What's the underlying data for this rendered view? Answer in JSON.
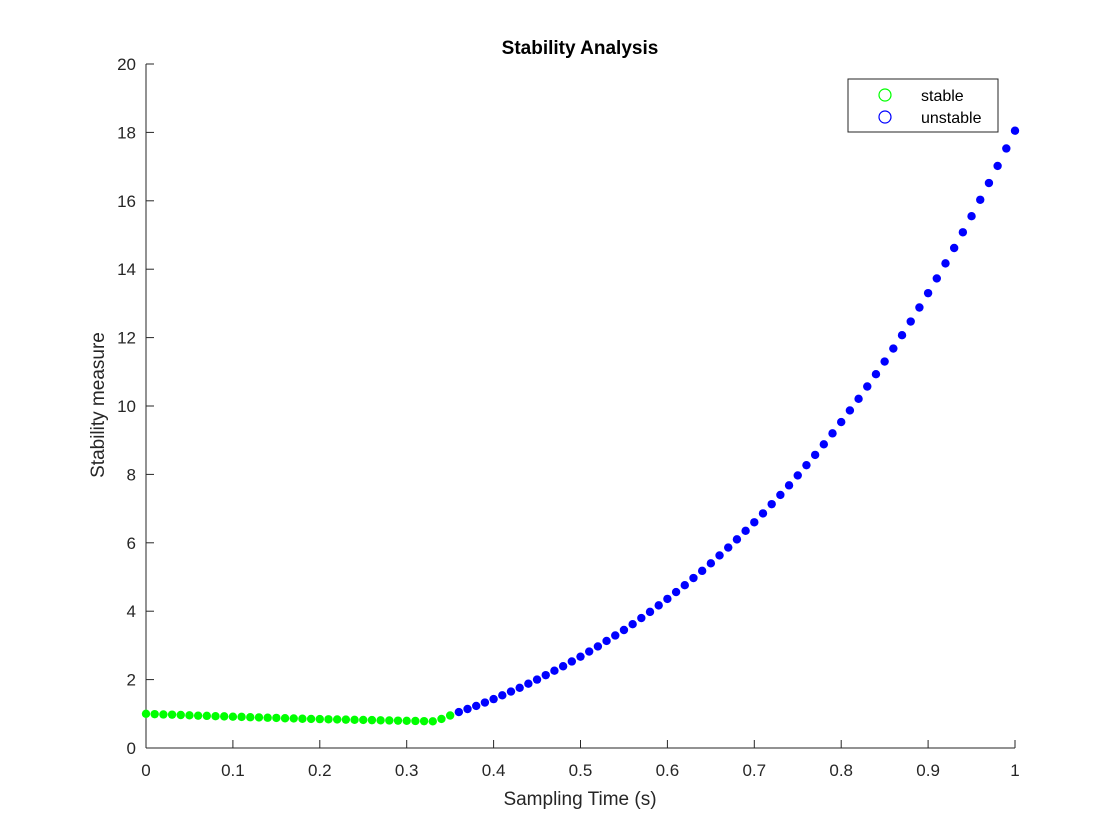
{
  "chart_data": {
    "type": "scatter",
    "title": "Stability Analysis",
    "xlabel": "Sampling Time (s)",
    "ylabel": "Stability measure",
    "xlim": [
      0,
      1
    ],
    "ylim": [
      0,
      20
    ],
    "xticks": [
      "0",
      "0.1",
      "0.2",
      "0.3",
      "0.4",
      "0.5",
      "0.6",
      "0.7",
      "0.8",
      "0.9",
      "1"
    ],
    "yticks": [
      "0",
      "2",
      "4",
      "6",
      "8",
      "10",
      "12",
      "14",
      "16",
      "18",
      "20"
    ],
    "grid": false,
    "legend_position": "top-right",
    "series": [
      {
        "name": "stable",
        "color": "#00ff00",
        "marker": "filled-circle",
        "x": [
          0,
          0.01,
          0.02,
          0.03,
          0.04,
          0.05,
          0.06,
          0.07,
          0.08,
          0.09,
          0.1,
          0.11,
          0.12,
          0.13,
          0.14,
          0.15,
          0.16,
          0.17,
          0.18,
          0.19,
          0.2,
          0.21,
          0.22,
          0.23,
          0.24,
          0.25,
          0.26,
          0.27,
          0.28,
          0.29,
          0.3,
          0.31,
          0.32,
          0.33,
          0.34,
          0.35
        ],
        "y": [
          1.0,
          0.99,
          0.98,
          0.975,
          0.965,
          0.955,
          0.945,
          0.94,
          0.93,
          0.925,
          0.915,
          0.91,
          0.9,
          0.895,
          0.885,
          0.88,
          0.87,
          0.865,
          0.855,
          0.85,
          0.845,
          0.84,
          0.835,
          0.83,
          0.825,
          0.82,
          0.815,
          0.81,
          0.805,
          0.8,
          0.795,
          0.79,
          0.785,
          0.78,
          0.85,
          0.95
        ]
      },
      {
        "name": "unstable",
        "color": "#0000ff",
        "marker": "filled-circle",
        "x": [
          0.36,
          0.37,
          0.38,
          0.39,
          0.4,
          0.41,
          0.42,
          0.43,
          0.44,
          0.45,
          0.46,
          0.47,
          0.48,
          0.49,
          0.5,
          0.51,
          0.52,
          0.53,
          0.54,
          0.55,
          0.56,
          0.57,
          0.58,
          0.59,
          0.6,
          0.61,
          0.62,
          0.63,
          0.64,
          0.65,
          0.66,
          0.67,
          0.68,
          0.69,
          0.7,
          0.71,
          0.72,
          0.73,
          0.74,
          0.75,
          0.76,
          0.77,
          0.78,
          0.79,
          0.8,
          0.81,
          0.82,
          0.83,
          0.84,
          0.85,
          0.86,
          0.87,
          0.88,
          0.89,
          0.9,
          0.91,
          0.92,
          0.93,
          0.94,
          0.95,
          0.96,
          0.97,
          0.98,
          0.99,
          1.0
        ],
        "y": [
          1.05,
          1.14,
          1.23,
          1.33,
          1.43,
          1.54,
          1.65,
          1.76,
          1.88,
          2.0,
          2.13,
          2.26,
          2.39,
          2.53,
          2.67,
          2.82,
          2.97,
          3.13,
          3.29,
          3.45,
          3.62,
          3.8,
          3.98,
          4.17,
          4.36,
          4.56,
          4.76,
          4.97,
          5.18,
          5.4,
          5.63,
          5.86,
          6.1,
          6.35,
          6.6,
          6.86,
          7.13,
          7.4,
          7.68,
          7.97,
          8.27,
          8.57,
          8.88,
          9.2,
          9.53,
          9.87,
          10.21,
          10.57,
          10.93,
          11.3,
          11.68,
          12.07,
          12.47,
          12.88,
          13.3,
          13.73,
          14.17,
          14.62,
          15.08,
          15.55,
          16.03,
          16.52,
          17.02,
          17.53,
          18.05
        ]
      }
    ]
  }
}
